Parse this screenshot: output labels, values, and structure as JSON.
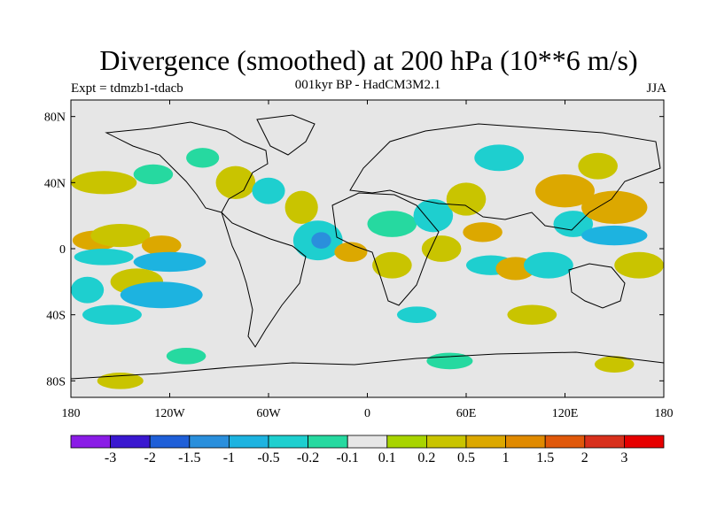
{
  "title": "Divergence (smoothed) at 200 hPa (10**6 m/s)",
  "subtitle": "001kyr BP - HadCM3M2.1",
  "experiment": "Expt = tdmzb1-tdacb",
  "season": "JJA",
  "map": {
    "projection": "cylindrical-equidistant",
    "lon_range": [
      -180,
      180
    ],
    "lat_range": [
      -90,
      90
    ],
    "lat_ticks": [
      {
        "label": "80N",
        "lat": 80
      },
      {
        "label": "40N",
        "lat": 40
      },
      {
        "label": "0",
        "lat": 0
      },
      {
        "label": "40S",
        "lat": -40
      },
      {
        "label": "80S",
        "lat": -80
      }
    ],
    "lon_ticks": [
      {
        "label": "180",
        "lon": -180
      },
      {
        "label": "120W",
        "lon": -120
      },
      {
        "label": "60W",
        "lon": -60
      },
      {
        "label": "0",
        "lon": 0
      },
      {
        "label": "60E",
        "lon": 60
      },
      {
        "label": "120E",
        "lon": 120
      },
      {
        "label": "180",
        "lon": 180
      }
    ]
  },
  "colorbar": {
    "labels": [
      "-3",
      "-2",
      "-1.5",
      "-1",
      "-0.5",
      "-0.2",
      "-0.1",
      "0.1",
      "0.2",
      "0.5",
      "1",
      "1.5",
      "2",
      "3"
    ],
    "colors": [
      "#8a1ce6",
      "#3a18d0",
      "#1f5fd8",
      "#2a8fdc",
      "#1db3e0",
      "#1ecfcf",
      "#26d9a0",
      "#e6e6e6",
      "#a8d400",
      "#c9c400",
      "#dca800",
      "#e08a00",
      "#e0580a",
      "#d8301c",
      "#e60000"
    ]
  },
  "field_regions": [
    {
      "lon": -165,
      "lat": 5,
      "rx": 14,
      "ry": 6,
      "c": 10
    },
    {
      "lon": -150,
      "lat": 8,
      "rx": 18,
      "ry": 7,
      "c": 9
    },
    {
      "lon": -125,
      "lat": 2,
      "rx": 12,
      "ry": 6,
      "c": 10
    },
    {
      "lon": -160,
      "lat": -5,
      "rx": 18,
      "ry": 5,
      "c": 5
    },
    {
      "lon": -120,
      "lat": -8,
      "rx": 22,
      "ry": 6,
      "c": 4
    },
    {
      "lon": -140,
      "lat": -20,
      "rx": 16,
      "ry": 8,
      "c": 9
    },
    {
      "lon": -125,
      "lat": -28,
      "rx": 25,
      "ry": 8,
      "c": 4
    },
    {
      "lon": -170,
      "lat": -25,
      "rx": 10,
      "ry": 8,
      "c": 5
    },
    {
      "lon": -155,
      "lat": -40,
      "rx": 18,
      "ry": 6,
      "c": 5
    },
    {
      "lon": -160,
      "lat": 40,
      "rx": 20,
      "ry": 7,
      "c": 9
    },
    {
      "lon": -130,
      "lat": 45,
      "rx": 12,
      "ry": 6,
      "c": 6
    },
    {
      "lon": -100,
      "lat": 55,
      "rx": 10,
      "ry": 6,
      "c": 6
    },
    {
      "lon": -80,
      "lat": 40,
      "rx": 12,
      "ry": 10,
      "c": 9
    },
    {
      "lon": -60,
      "lat": 35,
      "rx": 10,
      "ry": 8,
      "c": 5
    },
    {
      "lon": -40,
      "lat": 25,
      "rx": 10,
      "ry": 10,
      "c": 9
    },
    {
      "lon": -30,
      "lat": 5,
      "rx": 15,
      "ry": 12,
      "c": 5
    },
    {
      "lon": -28,
      "lat": 5,
      "rx": 6,
      "ry": 5,
      "c": 3
    },
    {
      "lon": -10,
      "lat": -2,
      "rx": 10,
      "ry": 6,
      "c": 10
    },
    {
      "lon": 15,
      "lat": 15,
      "rx": 15,
      "ry": 8,
      "c": 6
    },
    {
      "lon": 15,
      "lat": -10,
      "rx": 12,
      "ry": 8,
      "c": 9
    },
    {
      "lon": 40,
      "lat": 20,
      "rx": 12,
      "ry": 10,
      "c": 5
    },
    {
      "lon": 45,
      "lat": 0,
      "rx": 12,
      "ry": 8,
      "c": 9
    },
    {
      "lon": 60,
      "lat": 30,
      "rx": 12,
      "ry": 10,
      "c": 9
    },
    {
      "lon": 70,
      "lat": 10,
      "rx": 12,
      "ry": 6,
      "c": 10
    },
    {
      "lon": 75,
      "lat": -10,
      "rx": 15,
      "ry": 6,
      "c": 5
    },
    {
      "lon": 90,
      "lat": -12,
      "rx": 12,
      "ry": 7,
      "c": 10
    },
    {
      "lon": 120,
      "lat": 35,
      "rx": 18,
      "ry": 10,
      "c": 10
    },
    {
      "lon": 125,
      "lat": 15,
      "rx": 12,
      "ry": 8,
      "c": 5
    },
    {
      "lon": 150,
      "lat": 8,
      "rx": 20,
      "ry": 6,
      "c": 4
    },
    {
      "lon": 150,
      "lat": 25,
      "rx": 20,
      "ry": 10,
      "c": 10
    },
    {
      "lon": 165,
      "lat": -10,
      "rx": 15,
      "ry": 8,
      "c": 9
    },
    {
      "lon": 110,
      "lat": -10,
      "rx": 15,
      "ry": 8,
      "c": 5
    },
    {
      "lon": 80,
      "lat": 55,
      "rx": 15,
      "ry": 8,
      "c": 5
    },
    {
      "lon": 140,
      "lat": 50,
      "rx": 12,
      "ry": 8,
      "c": 9
    },
    {
      "lon": 30,
      "lat": -40,
      "rx": 12,
      "ry": 5,
      "c": 5
    },
    {
      "lon": 100,
      "lat": -40,
      "rx": 15,
      "ry": 6,
      "c": 9
    },
    {
      "lon": -110,
      "lat": -65,
      "rx": 12,
      "ry": 5,
      "c": 6
    },
    {
      "lon": -150,
      "lat": -80,
      "rx": 14,
      "ry": 5,
      "c": 9
    },
    {
      "lon": 50,
      "lat": -68,
      "rx": 14,
      "ry": 5,
      "c": 6
    },
    {
      "lon": 150,
      "lat": -70,
      "rx": 12,
      "ry": 5,
      "c": 9
    }
  ]
}
